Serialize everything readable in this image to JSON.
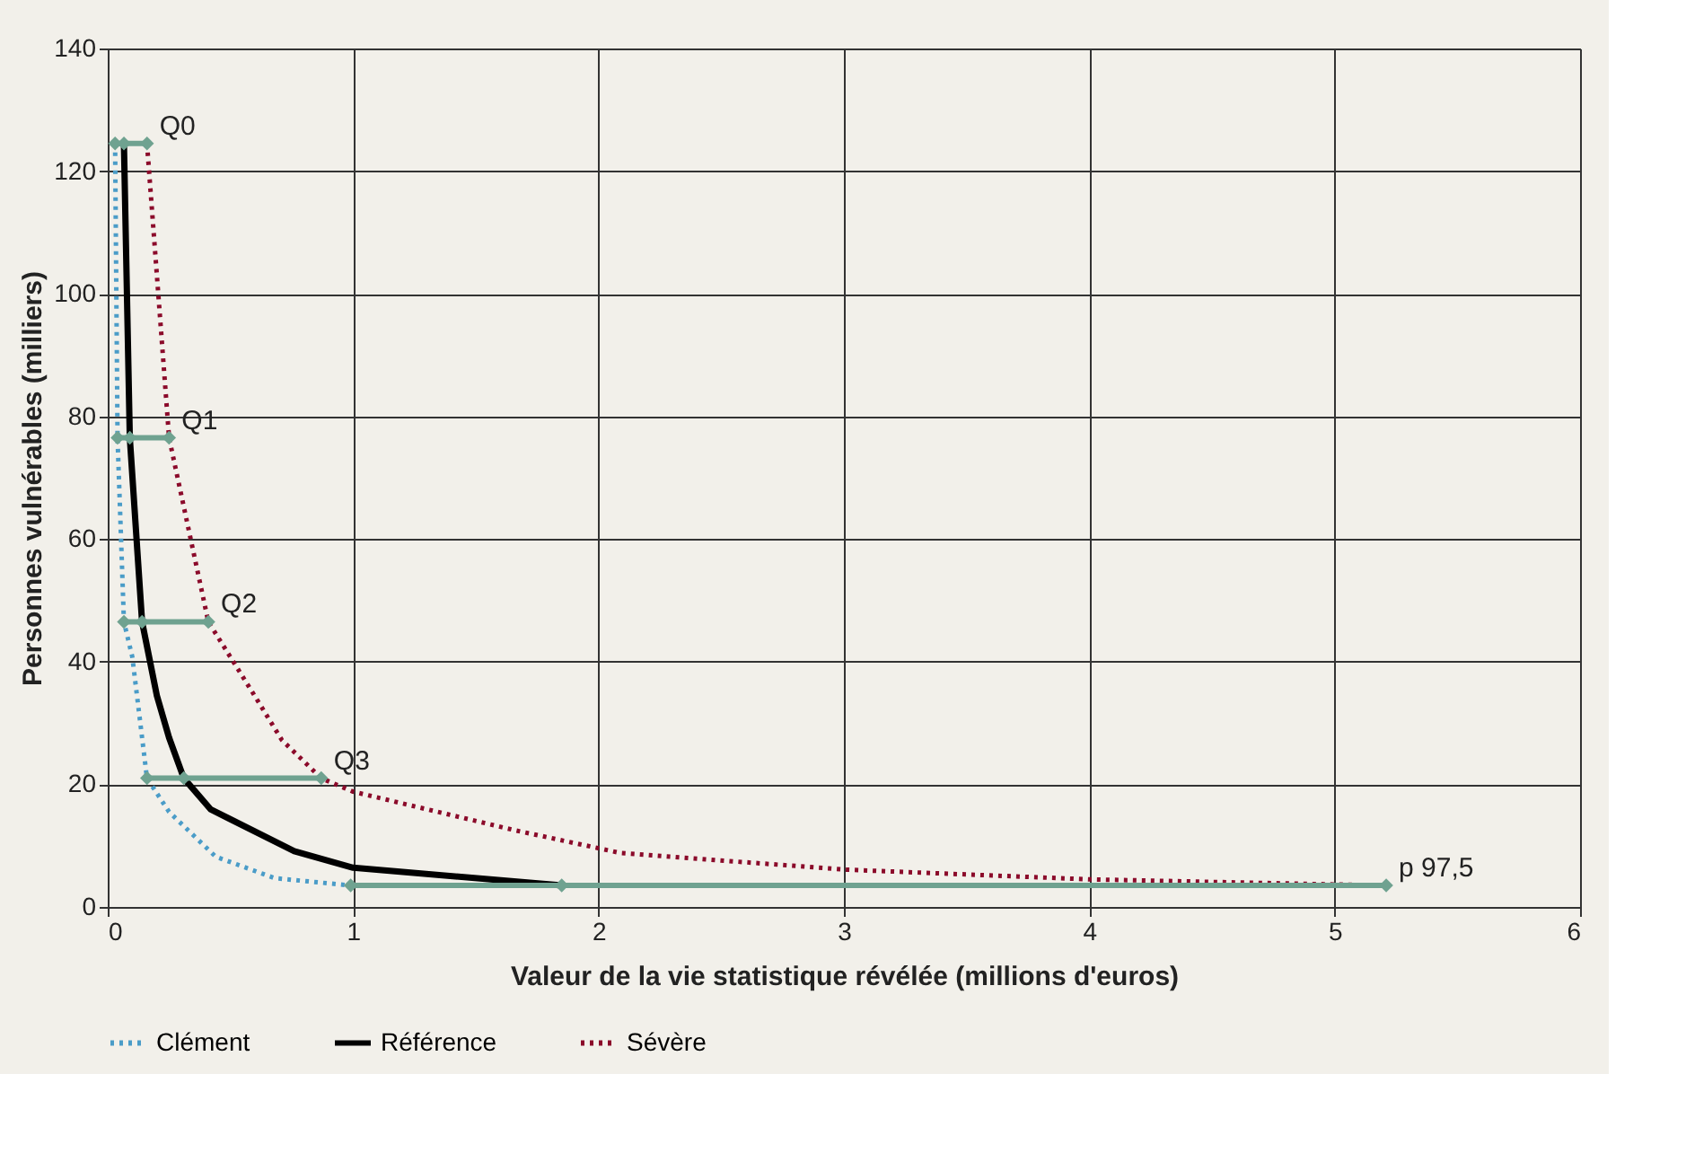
{
  "chart_data": {
    "type": "line",
    "xlabel": "Valeur de la vie statistique révélée (millions d'euros)",
    "ylabel": "Personnes vulnérables (milliers)",
    "xlim": [
      0,
      6
    ],
    "xticks": [
      0,
      1,
      2,
      3,
      4,
      5,
      6
    ],
    "ylim": [
      0,
      140
    ],
    "yticks": [
      0,
      20,
      40,
      60,
      80,
      100,
      120,
      140
    ],
    "grid": true,
    "legend": "bottom",
    "series": [
      {
        "name": "Clément",
        "color": "#4a9cc8",
        "line_style": "dotted",
        "x": [
          0.03,
          0.04,
          0.066,
          0.1,
          0.16,
          0.25,
          0.44,
          0.68,
          0.99
        ],
        "values": [
          124.5,
          76.5,
          46.5,
          40.8,
          21,
          15.5,
          8.2,
          4.7,
          3.5
        ]
      },
      {
        "name": "Référence",
        "color": "#000000",
        "line_style": "solid",
        "x": [
          0.066,
          0.09,
          0.14,
          0.2,
          0.25,
          0.31,
          0.42,
          0.76,
          1.0,
          1.85
        ],
        "values": [
          124.5,
          76.5,
          46.5,
          34.5,
          27.6,
          21,
          15.9,
          9.1,
          6.4,
          3.5
        ]
      },
      {
        "name": "Sévère",
        "color": "#8b0a2a",
        "line_style": "dotted",
        "x": [
          0.16,
          0.25,
          0.41,
          0.59,
          0.71,
          0.87,
          1.0,
          1.66,
          2.09,
          3.0,
          4.0,
          5.21
        ],
        "values": [
          124.5,
          76.5,
          46.5,
          35,
          27.2,
          21,
          18.8,
          12.5,
          8.8,
          6.1,
          4.5,
          3.5
        ]
      },
      {
        "type": "scatter",
        "color": "#6fa290",
        "marker": "diamond",
        "x": [
          0.066,
          0.09,
          0.14,
          0.31,
          1.85
        ],
        "values": [
          124.5,
          76.5,
          46.5,
          21,
          3.5
        ],
        "xerrors": [
          [
            0.03,
            0.16
          ],
          [
            0.04,
            0.25
          ],
          [
            0.066,
            0.41
          ],
          [
            0.16,
            0.87
          ],
          [
            0.99,
            5.21
          ]
        ]
      }
    ],
    "annotations": [
      {
        "text": "Q0",
        "x": 0.16,
        "y": 124.5
      },
      {
        "text": "Q1",
        "x": 0.25,
        "y": 76.5
      },
      {
        "text": "Q2",
        "x": 0.41,
        "y": 46.5
      },
      {
        "text": "Q3",
        "x": 0.87,
        "y": 21
      },
      {
        "text": "p 97,5",
        "x": 5.21,
        "y": 3.5
      }
    ]
  }
}
